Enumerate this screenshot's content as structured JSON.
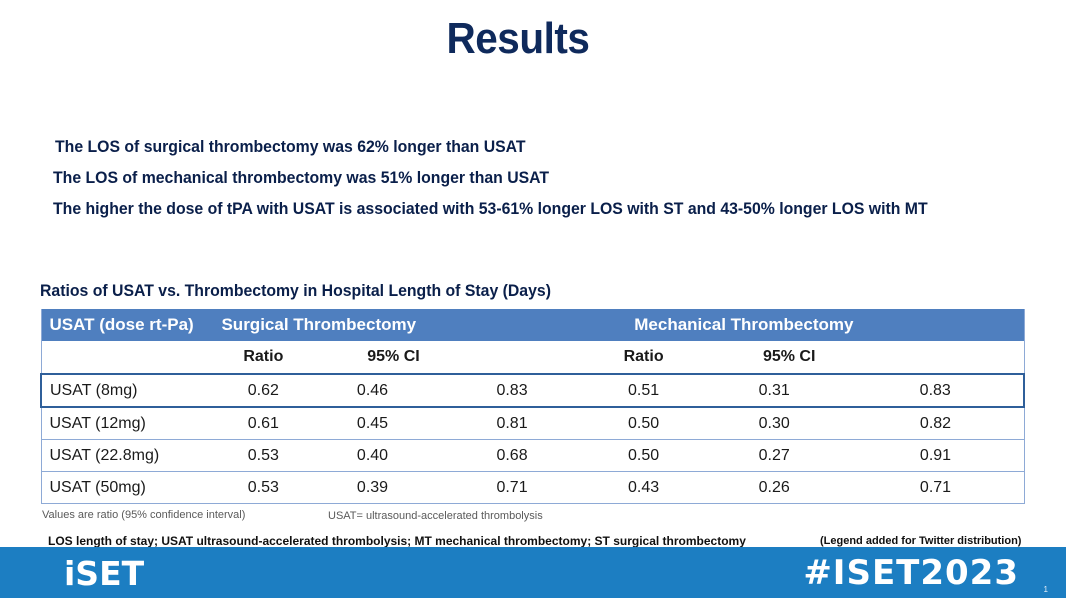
{
  "title": "Results",
  "bullets": [
    "The LOS of surgical thrombectomy was 62% longer than USAT",
    "The LOS of mechanical thrombectomy was 51% longer than USAT",
    "The higher the dose of tPA with USAT is associated with 53-61% longer LOS with ST and 43-50% longer LOS with MT"
  ],
  "table": {
    "caption": "Ratios of USAT vs. Thrombectomy in Hospital Length of Stay (Days)",
    "header": {
      "col0": "USAT (dose rt-Pa)",
      "group1": "Surgical Thrombectomy",
      "group2": "Mechanical Thrombectomy"
    },
    "subheader": {
      "ratio1": "Ratio",
      "ci1": "95% CI",
      "ratio2": "Ratio",
      "ci2": "95% CI"
    },
    "rows": [
      {
        "label": "USAT (8mg)",
        "st_ratio": "0.62",
        "st_lo": "0.46",
        "st_hi": "0.83",
        "mt_ratio": "0.51",
        "mt_lo": "0.31",
        "mt_hi": "0.83"
      },
      {
        "label": "USAT (12mg)",
        "st_ratio": "0.61",
        "st_lo": "0.45",
        "st_hi": "0.81",
        "mt_ratio": "0.50",
        "mt_lo": "0.30",
        "mt_hi": "0.82"
      },
      {
        "label": "USAT (22.8mg)",
        "st_ratio": "0.53",
        "st_lo": "0.40",
        "st_hi": "0.68",
        "mt_ratio": "0.50",
        "mt_lo": "0.27",
        "mt_hi": "0.91"
      },
      {
        "label": "USAT (50mg)",
        "st_ratio": "0.53",
        "st_lo": "0.39",
        "st_hi": "0.71",
        "mt_ratio": "0.43",
        "mt_lo": "0.26",
        "mt_hi": "0.71"
      }
    ]
  },
  "notes": {
    "values": "Values are ratio (95% confidence interval)",
    "usat": "USAT= ultrasound-accelerated thrombolysis",
    "abbreviations": "LOS length of stay; USAT ultrasound-accelerated thrombolysis; MT mechanical thrombectomy; ST surgical thrombectomy",
    "legend": "(Legend added for Twitter distribution)"
  },
  "footer": {
    "logo": "iSET",
    "hashtag": "#ISET2023",
    "page_number": "1",
    "color": "#1c7ec2"
  }
}
